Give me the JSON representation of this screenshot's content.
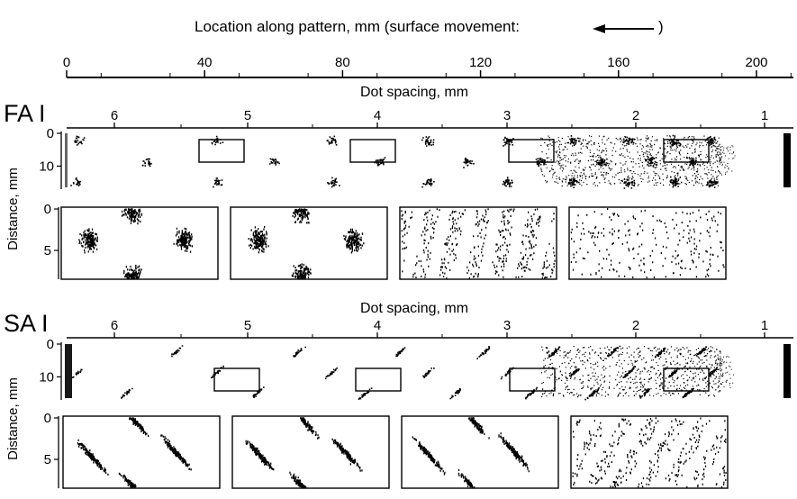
{
  "chart_data": {
    "type": "scatter",
    "title": "Location along pattern, mm (surface movement:",
    "title_arrow": "left-arrow",
    "top_axis": {
      "ticks": [
        0,
        40,
        80,
        120,
        160,
        200
      ],
      "range": [
        0,
        212
      ]
    },
    "dot_spacing_label": "Dot spacing, mm",
    "dot_spacing_ticks": [
      "6",
      "5",
      "4",
      "3",
      "2",
      "1"
    ],
    "ylabel": "Distance, mm",
    "main_yticks": [
      "0",
      "10"
    ],
    "inset_yticks": [
      "0",
      "5"
    ],
    "panels": [
      {
        "name": "FA I",
        "main_pattern": "fa",
        "inset_count": 4,
        "insets": [
          {
            "spacing_mm": 5,
            "pattern": "fa-cluster"
          },
          {
            "spacing_mm": 4,
            "pattern": "fa-cluster"
          },
          {
            "spacing_mm": 3,
            "pattern": "fa-dense"
          },
          {
            "spacing_mm": 2,
            "pattern": "fa-sparse"
          }
        ]
      },
      {
        "name": "SA I",
        "main_pattern": "sa",
        "inset_count": 4,
        "insets": [
          {
            "spacing_mm": 5,
            "pattern": "sa-diagonal"
          },
          {
            "spacing_mm": 4,
            "pattern": "sa-diagonal"
          },
          {
            "spacing_mm": 3,
            "pattern": "sa-diagonal"
          },
          {
            "spacing_mm": 2,
            "pattern": "sa-dense"
          }
        ]
      }
    ]
  },
  "colors": {
    "ink": "#000000",
    "background": "#ffffff"
  }
}
